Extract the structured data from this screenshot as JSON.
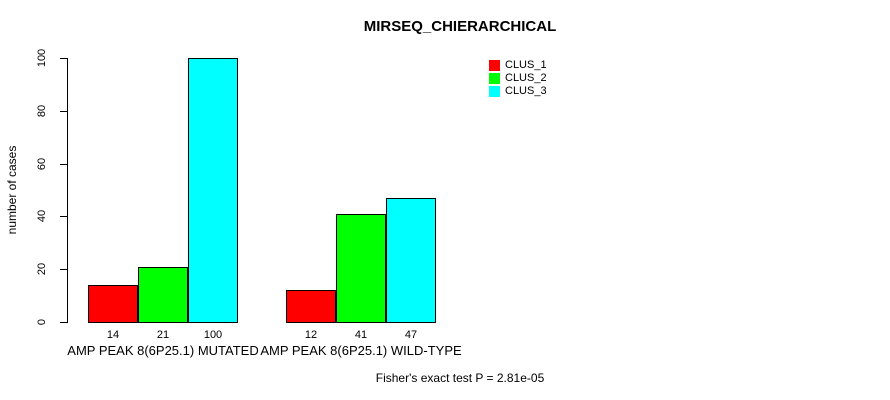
{
  "chart_data": {
    "type": "bar",
    "title": "MIRSEQ_CHIERARCHICAL",
    "xlabel": "",
    "ylabel": "number of cases",
    "ylim": [
      0,
      100
    ],
    "yticks": [
      0,
      20,
      40,
      60,
      80,
      100
    ],
    "categories": [
      "AMP PEAK  8(6P25.1) MUTATED",
      "AMP PEAK  8(6P25.1) WILD-TYPE"
    ],
    "series": [
      {
        "name": "CLUS_1",
        "color": "#ff0000",
        "values": [
          14,
          12
        ]
      },
      {
        "name": "CLUS_2",
        "color": "#00ff00",
        "values": [
          21,
          41
        ]
      },
      {
        "name": "CLUS_3",
        "color": "#00ffff",
        "values": [
          100,
          47
        ]
      }
    ],
    "bar_value_labels": true,
    "legend_position": "top-right",
    "grid": false,
    "background": "#ffffff",
    "annotation": "Fisher's exact test P = 2.81e-05"
  }
}
